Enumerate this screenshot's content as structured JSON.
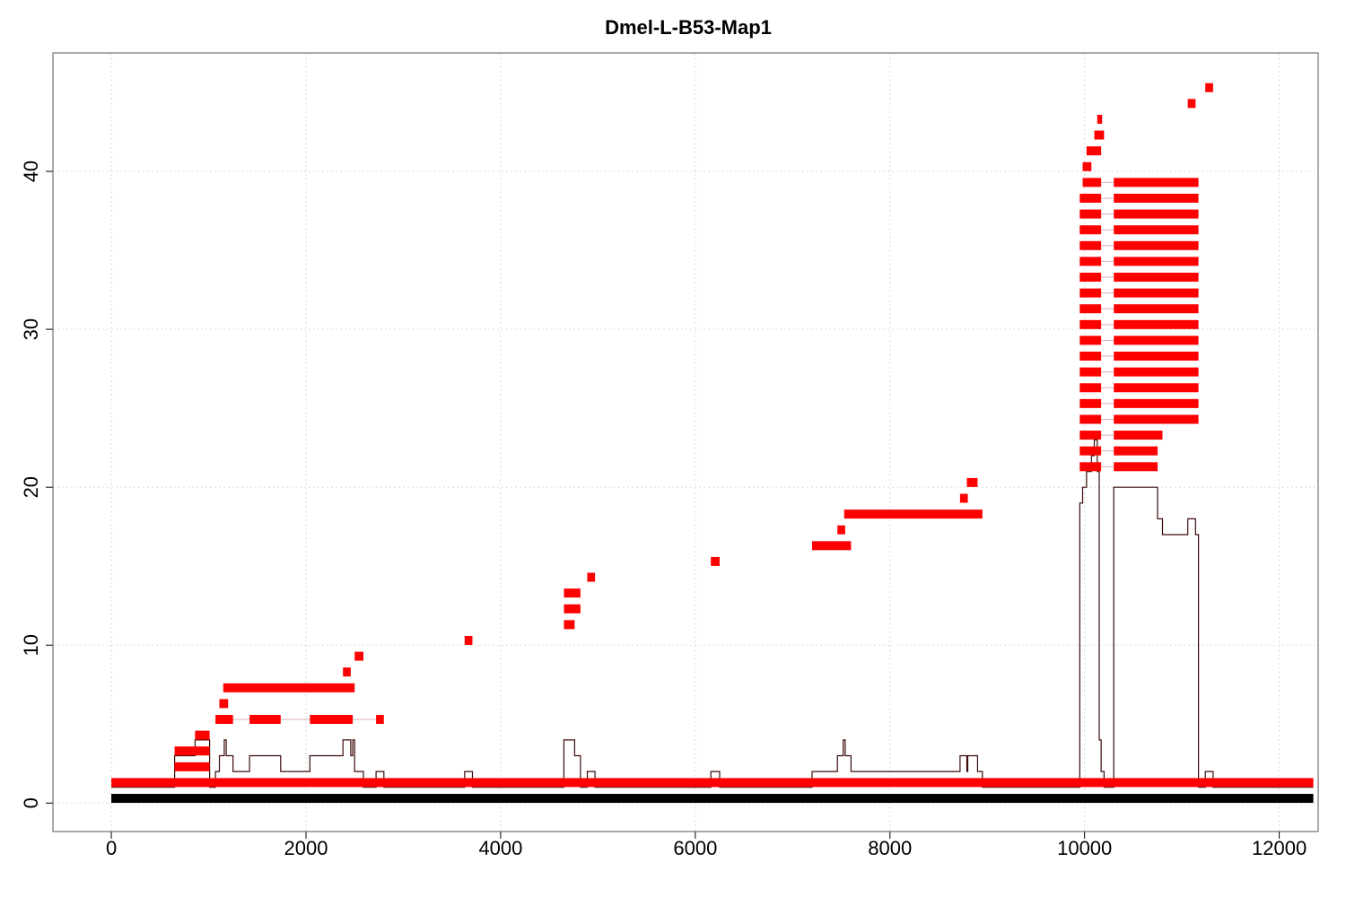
{
  "chart_data": {
    "type": "line",
    "title": "Dmel-L-B53-Map1",
    "xlabel": "",
    "ylabel": "",
    "xlim": [
      -600,
      12400
    ],
    "ylim": [
      -1.8,
      47.5
    ],
    "xticks": [
      0,
      2000,
      4000,
      6000,
      8000,
      10000,
      12000
    ],
    "xtick_labels": [
      "0",
      "2000",
      "4000",
      "6000",
      "8000",
      "10000",
      "12000"
    ],
    "yticks": [
      0,
      10,
      20,
      30,
      40
    ],
    "ytick_labels": [
      "0",
      "10",
      "20",
      "30",
      "40"
    ],
    "grid": true,
    "colors": {
      "reads": "#ff0000",
      "read_connector": "#d9b3b3",
      "coverage": "#3b0a0a",
      "reference": "#000000",
      "grid": "#d9d9d9",
      "frame": "#555555"
    },
    "reference": {
      "start": 0,
      "end": 12350,
      "y": 0.3
    },
    "reads": [
      {
        "y": 1.3,
        "segments": [
          [
            0,
            12350
          ]
        ]
      },
      {
        "y": 2.3,
        "segments": [
          [
            650,
            1010
          ]
        ]
      },
      {
        "y": 3.3,
        "segments": [
          [
            650,
            1010
          ]
        ]
      },
      {
        "y": 4.3,
        "segments": [
          [
            860,
            1010
          ]
        ]
      },
      {
        "y": 5.3,
        "segments": [
          [
            1070,
            1250
          ],
          [
            1420,
            1740
          ],
          [
            2040,
            2480
          ],
          [
            2720,
            2800
          ]
        ]
      },
      {
        "y": 6.3,
        "segments": [
          [
            1110,
            1200
          ]
        ]
      },
      {
        "y": 7.3,
        "segments": [
          [
            1150,
            2500
          ]
        ]
      },
      {
        "y": 8.3,
        "segments": [
          [
            2380,
            2460
          ]
        ]
      },
      {
        "y": 9.3,
        "segments": [
          [
            2500,
            2590
          ]
        ]
      },
      {
        "y": 10.3,
        "segments": [
          [
            3630,
            3710
          ]
        ]
      },
      {
        "y": 11.3,
        "segments": [
          [
            4650,
            4760
          ]
        ]
      },
      {
        "y": 12.3,
        "segments": [
          [
            4650,
            4820
          ]
        ]
      },
      {
        "y": 13.3,
        "segments": [
          [
            4650,
            4820
          ]
        ]
      },
      {
        "y": 14.3,
        "segments": [
          [
            4890,
            4970
          ]
        ]
      },
      {
        "y": 15.3,
        "segments": [
          [
            6160,
            6250
          ]
        ]
      },
      {
        "y": 16.3,
        "segments": [
          [
            7200,
            7600
          ]
        ]
      },
      {
        "y": 17.3,
        "segments": [
          [
            7460,
            7540
          ]
        ]
      },
      {
        "y": 18.3,
        "segments": [
          [
            7530,
            8950
          ]
        ]
      },
      {
        "y": 19.3,
        "segments": [
          [
            8720,
            8800
          ]
        ]
      },
      {
        "y": 20.3,
        "segments": [
          [
            8790,
            8900
          ]
        ]
      },
      {
        "y": 21.3,
        "segments": [
          [
            9950,
            10170
          ],
          [
            10300,
            10750
          ]
        ]
      },
      {
        "y": 22.3,
        "segments": [
          [
            9950,
            10170
          ],
          [
            10300,
            10750
          ]
        ]
      },
      {
        "y": 23.3,
        "segments": [
          [
            9950,
            10170
          ],
          [
            10300,
            10800
          ]
        ]
      },
      {
        "y": 24.3,
        "segments": [
          [
            9950,
            10170
          ],
          [
            10300,
            11170
          ]
        ]
      },
      {
        "y": 25.3,
        "segments": [
          [
            9950,
            10170
          ],
          [
            10300,
            11170
          ]
        ]
      },
      {
        "y": 26.3,
        "segments": [
          [
            9950,
            10170
          ],
          [
            10300,
            11170
          ]
        ]
      },
      {
        "y": 27.3,
        "segments": [
          [
            9950,
            10170
          ],
          [
            10300,
            11170
          ]
        ]
      },
      {
        "y": 28.3,
        "segments": [
          [
            9950,
            10170
          ],
          [
            10300,
            11170
          ]
        ]
      },
      {
        "y": 29.3,
        "segments": [
          [
            9950,
            10170
          ],
          [
            10300,
            11170
          ]
        ]
      },
      {
        "y": 30.3,
        "segments": [
          [
            9950,
            10170
          ],
          [
            10300,
            11170
          ]
        ]
      },
      {
        "y": 31.3,
        "segments": [
          [
            9950,
            10170
          ],
          [
            10300,
            11170
          ]
        ]
      },
      {
        "y": 32.3,
        "segments": [
          [
            9950,
            10170
          ],
          [
            10300,
            11170
          ]
        ]
      },
      {
        "y": 33.3,
        "segments": [
          [
            9950,
            10170
          ],
          [
            10300,
            11170
          ]
        ]
      },
      {
        "y": 34.3,
        "segments": [
          [
            9950,
            10170
          ],
          [
            10300,
            11170
          ]
        ]
      },
      {
        "y": 35.3,
        "segments": [
          [
            9950,
            10170
          ],
          [
            10300,
            11170
          ]
        ]
      },
      {
        "y": 36.3,
        "segments": [
          [
            9950,
            10170
          ],
          [
            10300,
            11170
          ]
        ]
      },
      {
        "y": 37.3,
        "segments": [
          [
            9950,
            10170
          ],
          [
            10300,
            11170
          ]
        ]
      },
      {
        "y": 38.3,
        "segments": [
          [
            9950,
            10170
          ],
          [
            10300,
            11170
          ]
        ]
      },
      {
        "y": 39.3,
        "segments": [
          [
            9980,
            10170
          ],
          [
            10300,
            11170
          ]
        ]
      },
      {
        "y": 40.3,
        "segments": [
          [
            9980,
            10070
          ]
        ]
      },
      {
        "y": 41.3,
        "segments": [
          [
            10020,
            10170
          ]
        ]
      },
      {
        "y": 42.3,
        "segments": [
          [
            10100,
            10200
          ]
        ]
      },
      {
        "y": 43.3,
        "segments": [
          [
            10130,
            10180
          ]
        ]
      },
      {
        "y": 44.3,
        "segments": [
          [
            11060,
            11140
          ]
        ]
      },
      {
        "y": 45.3,
        "segments": [
          [
            11240,
            11320
          ]
        ]
      }
    ],
    "coverage": [
      [
        0,
        1
      ],
      [
        650,
        1
      ],
      [
        650,
        3
      ],
      [
        860,
        3
      ],
      [
        860,
        4
      ],
      [
        1010,
        4
      ],
      [
        1010,
        2
      ],
      [
        1010,
        1
      ],
      [
        1070,
        1
      ],
      [
        1070,
        2
      ],
      [
        1110,
        2
      ],
      [
        1110,
        3
      ],
      [
        1160,
        3
      ],
      [
        1160,
        4
      ],
      [
        1180,
        4
      ],
      [
        1180,
        3
      ],
      [
        1250,
        3
      ],
      [
        1250,
        2
      ],
      [
        1420,
        2
      ],
      [
        1420,
        3
      ],
      [
        1740,
        3
      ],
      [
        1740,
        2
      ],
      [
        2040,
        2
      ],
      [
        2040,
        3
      ],
      [
        2380,
        3
      ],
      [
        2380,
        4
      ],
      [
        2460,
        4
      ],
      [
        2460,
        3
      ],
      [
        2480,
        3
      ],
      [
        2480,
        4
      ],
      [
        2500,
        4
      ],
      [
        2500,
        2
      ],
      [
        2590,
        2
      ],
      [
        2590,
        1
      ],
      [
        2720,
        1
      ],
      [
        2720,
        2
      ],
      [
        2800,
        2
      ],
      [
        2800,
        1
      ],
      [
        3630,
        1
      ],
      [
        3630,
        2
      ],
      [
        3710,
        2
      ],
      [
        3710,
        1
      ],
      [
        4650,
        1
      ],
      [
        4650,
        4
      ],
      [
        4760,
        4
      ],
      [
        4760,
        3
      ],
      [
        4820,
        3
      ],
      [
        4820,
        1
      ],
      [
        4890,
        1
      ],
      [
        4890,
        2
      ],
      [
        4970,
        2
      ],
      [
        4970,
        1
      ],
      [
        6160,
        1
      ],
      [
        6160,
        2
      ],
      [
        6250,
        2
      ],
      [
        6250,
        1
      ],
      [
        7200,
        1
      ],
      [
        7200,
        2
      ],
      [
        7460,
        2
      ],
      [
        7460,
        3
      ],
      [
        7520,
        3
      ],
      [
        7520,
        4
      ],
      [
        7540,
        4
      ],
      [
        7540,
        3
      ],
      [
        7600,
        3
      ],
      [
        7600,
        2
      ],
      [
        8720,
        2
      ],
      [
        8720,
        3
      ],
      [
        8790,
        3
      ],
      [
        8790,
        2
      ],
      [
        8800,
        2
      ],
      [
        8800,
        3
      ],
      [
        8900,
        3
      ],
      [
        8900,
        2
      ],
      [
        8950,
        2
      ],
      [
        8950,
        1
      ],
      [
        9950,
        1
      ],
      [
        9950,
        19
      ],
      [
        9980,
        19
      ],
      [
        9980,
        20
      ],
      [
        10020,
        20
      ],
      [
        10020,
        21
      ],
      [
        10070,
        21
      ],
      [
        10070,
        22
      ],
      [
        10100,
        22
      ],
      [
        10100,
        23
      ],
      [
        10130,
        23
      ],
      [
        10130,
        21
      ],
      [
        10150,
        21
      ],
      [
        10150,
        4
      ],
      [
        10170,
        4
      ],
      [
        10170,
        2
      ],
      [
        10200,
        2
      ],
      [
        10200,
        1
      ],
      [
        10300,
        1
      ],
      [
        10300,
        20
      ],
      [
        10750,
        20
      ],
      [
        10750,
        18
      ],
      [
        10800,
        18
      ],
      [
        10800,
        17
      ],
      [
        11060,
        17
      ],
      [
        11060,
        18
      ],
      [
        11140,
        18
      ],
      [
        11140,
        17
      ],
      [
        11170,
        17
      ],
      [
        11170,
        1
      ],
      [
        11240,
        1
      ],
      [
        11240,
        2
      ],
      [
        11320,
        2
      ],
      [
        11320,
        1
      ],
      [
        12350,
        1
      ]
    ]
  }
}
